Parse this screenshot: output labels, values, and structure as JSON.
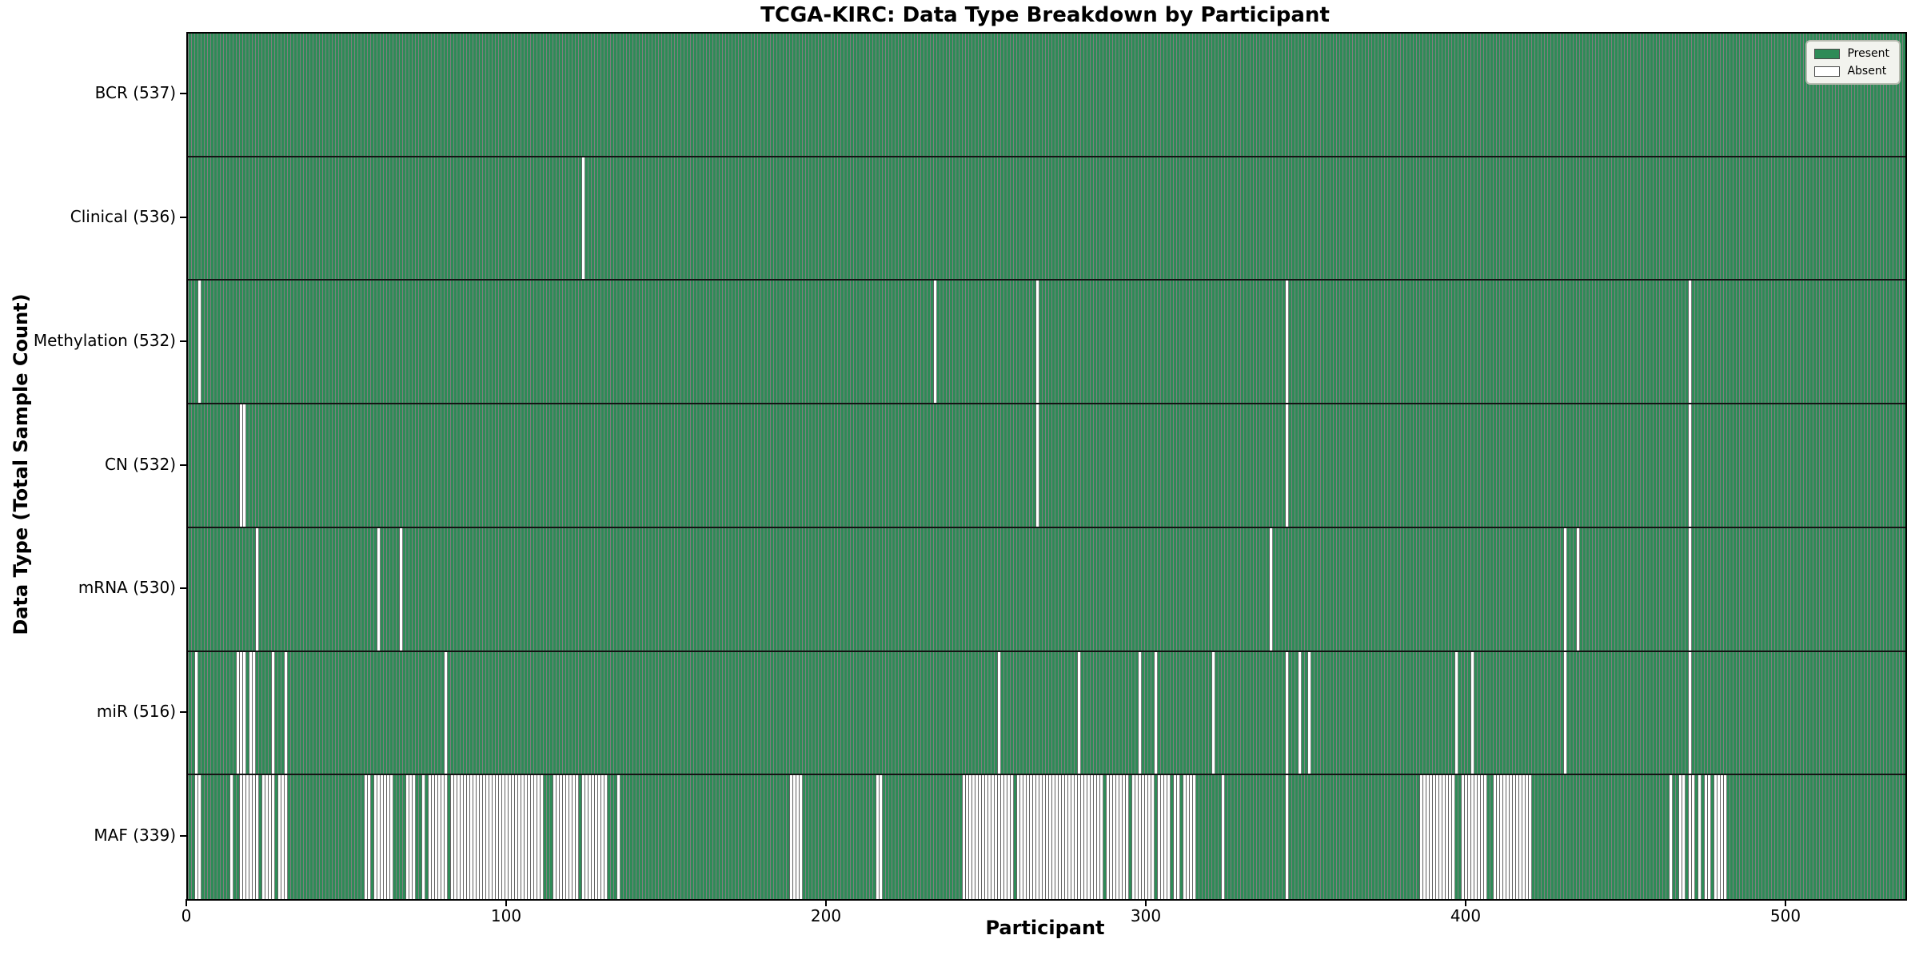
{
  "title": "TCGA-KIRC: Data Type Breakdown by Participant",
  "xlabel": "Participant",
  "ylabel": "Data Type (Total Sample Count)",
  "legend": {
    "present_label": "Present",
    "absent_label": "Absent"
  },
  "colors": {
    "present": "#2E8B57",
    "absent": "#FFFFFF",
    "row_separator": "#141414",
    "legend_background": "#F2F3EE",
    "legend_border": "#B7BBB0"
  },
  "chart_data": {
    "type": "heatmap",
    "title": "TCGA-KIRC: Data Type Breakdown by Participant",
    "xlabel": "Participant",
    "ylabel": "Data Type (Total Sample Count)",
    "legend_entries": [
      "Present",
      "Absent"
    ],
    "legend_position": "upper right",
    "n_participants": 537,
    "xlim": [
      0,
      537
    ],
    "x_ticks": [
      0,
      100,
      200,
      300,
      400,
      500
    ],
    "rows": [
      {
        "label": "BCR (537)",
        "data_type": "BCR",
        "present_count": 537,
        "absent_ranges": []
      },
      {
        "label": "Clinical (536)",
        "data_type": "Clinical",
        "present_count": 536,
        "absent_ranges": [
          [
            123,
            123
          ]
        ]
      },
      {
        "label": "Methylation (532)",
        "data_type": "Methylation",
        "present_count": 532,
        "absent_ranges": [
          [
            3,
            3
          ],
          [
            233,
            233
          ],
          [
            265,
            265
          ],
          [
            343,
            343
          ],
          [
            469,
            469
          ]
        ]
      },
      {
        "label": "CN (532)",
        "data_type": "CN",
        "present_count": 532,
        "absent_ranges": [
          [
            16,
            17
          ],
          [
            265,
            265
          ],
          [
            343,
            343
          ],
          [
            469,
            469
          ]
        ]
      },
      {
        "label": "mRNA (530)",
        "data_type": "mRNA",
        "present_count": 530,
        "absent_ranges": [
          [
            21,
            21
          ],
          [
            59,
            59
          ],
          [
            66,
            66
          ],
          [
            338,
            338
          ],
          [
            430,
            430
          ],
          [
            434,
            434
          ],
          [
            469,
            469
          ]
        ]
      },
      {
        "label": "miR (516)",
        "data_type": "miR",
        "present_count": 516,
        "absent_ranges": [
          [
            2,
            2
          ],
          [
            15,
            17
          ],
          [
            19,
            20
          ],
          [
            26,
            26
          ],
          [
            30,
            30
          ],
          [
            80,
            80
          ],
          [
            253,
            253
          ],
          [
            278,
            278
          ],
          [
            297,
            297
          ],
          [
            302,
            302
          ],
          [
            320,
            320
          ],
          [
            343,
            343
          ],
          [
            347,
            347
          ],
          [
            350,
            350
          ],
          [
            396,
            396
          ],
          [
            401,
            401
          ],
          [
            430,
            430
          ],
          [
            469,
            469
          ]
        ]
      },
      {
        "label": "MAF (339)",
        "data_type": "MAF",
        "present_count": 339,
        "absent_ranges": [
          [
            2,
            3
          ],
          [
            13,
            13
          ],
          [
            16,
            21
          ],
          [
            23,
            26
          ],
          [
            28,
            30
          ],
          [
            55,
            56
          ],
          [
            58,
            63
          ],
          [
            68,
            70
          ],
          [
            73,
            73
          ],
          [
            75,
            80
          ],
          [
            82,
            110
          ],
          [
            114,
            121
          ],
          [
            123,
            130
          ],
          [
            134,
            134
          ],
          [
            188,
            191
          ],
          [
            215,
            216
          ],
          [
            242,
            257
          ],
          [
            259,
            285
          ],
          [
            287,
            293
          ],
          [
            295,
            301
          ],
          [
            303,
            306
          ],
          [
            308,
            309
          ],
          [
            311,
            314
          ],
          [
            323,
            323
          ],
          [
            343,
            343
          ],
          [
            385,
            395
          ],
          [
            398,
            405
          ],
          [
            408,
            419
          ],
          [
            463,
            463
          ],
          [
            466,
            467
          ],
          [
            469,
            470
          ],
          [
            472,
            472
          ],
          [
            474,
            475
          ],
          [
            477,
            480
          ]
        ]
      }
    ]
  }
}
